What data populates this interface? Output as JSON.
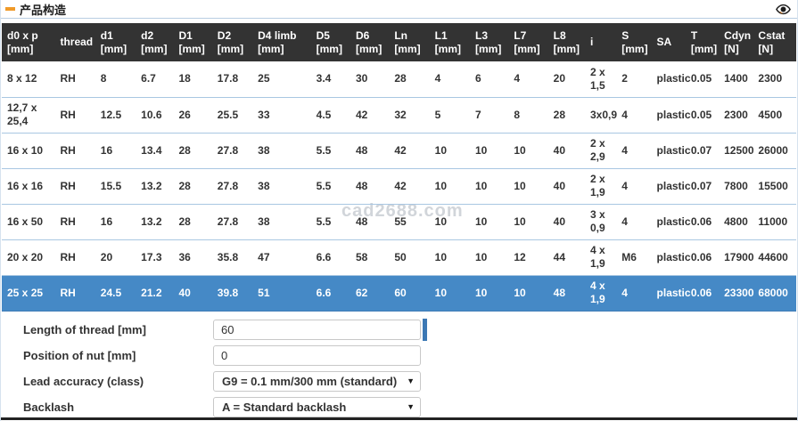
{
  "header": {
    "title": "产品构造"
  },
  "icons": {
    "dropdown_arrow": "▼"
  },
  "watermark": "cad2688.com",
  "colors": {
    "header_bg": "#333333",
    "selected_row": "#4589c6",
    "row_divider": "#a9c7e2",
    "accent_orange": "#f09a28",
    "indicator_bar": "#3c78b4"
  },
  "table": {
    "columns": [
      "d0 x p\n[mm]",
      "thread",
      "d1\n[mm]",
      "d2\n[mm]",
      "D1\n[mm]",
      "D2\n[mm]",
      "D4 limb\n[mm]",
      "D5\n[mm]",
      "D6\n[mm]",
      "Ln\n[mm]",
      "L1\n[mm]",
      "L3\n[mm]",
      "L7\n[mm]",
      "L8\n[mm]",
      "i",
      "S\n[mm]",
      "SA",
      "T\n[mm]",
      "Cdyn\n[N]",
      "Cstat\n[N]"
    ],
    "rows": [
      [
        "8 x 12",
        "RH",
        "8",
        "6.7",
        "18",
        "17.8",
        "25",
        "3.4",
        "30",
        "28",
        "4",
        "6",
        "4",
        "20",
        "2 x 1,5",
        "2",
        "plastic",
        "0.05",
        "1400",
        "2300"
      ],
      [
        "12,7 x 25,4",
        "RH",
        "12.5",
        "10.6",
        "26",
        "25.5",
        "33",
        "4.5",
        "42",
        "32",
        "5",
        "7",
        "8",
        "28",
        "3x0,9",
        "4",
        "plastic",
        "0.05",
        "2300",
        "4500"
      ],
      [
        "16 x 10",
        "RH",
        "16",
        "13.4",
        "28",
        "27.8",
        "38",
        "5.5",
        "48",
        "42",
        "10",
        "10",
        "10",
        "40",
        "2 x 2,9",
        "4",
        "plastic",
        "0.07",
        "12500",
        "26000"
      ],
      [
        "16 x 16",
        "RH",
        "15.5",
        "13.2",
        "28",
        "27.8",
        "38",
        "5.5",
        "48",
        "42",
        "10",
        "10",
        "10",
        "40",
        "2 x 1,9",
        "4",
        "plastic",
        "0.07",
        "7800",
        "15500"
      ],
      [
        "16 x 50",
        "RH",
        "16",
        "13.2",
        "28",
        "27.8",
        "38",
        "5.5",
        "48",
        "55",
        "10",
        "10",
        "10",
        "40",
        "3 x 0,9",
        "4",
        "plastic",
        "0.06",
        "4800",
        "11000"
      ],
      [
        "20 x 20",
        "RH",
        "20",
        "17.3",
        "36",
        "35.8",
        "47",
        "6.6",
        "58",
        "50",
        "10",
        "10",
        "12",
        "44",
        "4 x 1,9",
        "M6",
        "plastic",
        "0.06",
        "17900",
        "44600"
      ],
      [
        "25 x 25",
        "RH",
        "24.5",
        "21.2",
        "40",
        "39.8",
        "51",
        "6.6",
        "62",
        "60",
        "10",
        "10",
        "10",
        "48",
        "4 x 1,9",
        "4",
        "plastic",
        "0.06",
        "23300",
        "68000"
      ]
    ],
    "selected_row_index": 6
  },
  "form": {
    "fields": [
      {
        "label": "Length of thread [mm]",
        "type": "input",
        "value": "60"
      },
      {
        "label": "Position of nut [mm]",
        "type": "input",
        "value": "0"
      },
      {
        "label": "Lead accuracy (class)",
        "type": "select",
        "value": "G9 = 0.1 mm/300 mm (standard)"
      },
      {
        "label": "Backlash",
        "type": "select",
        "value": "A = Standard backlash"
      }
    ]
  }
}
